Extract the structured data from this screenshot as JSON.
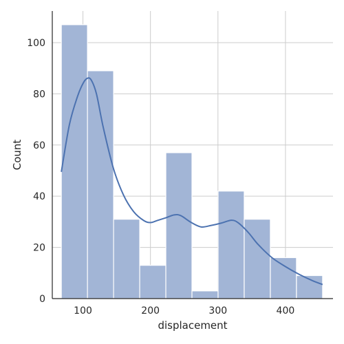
{
  "chart_data": {
    "type": "bar",
    "subtype": "histogram-with-kde",
    "title": "",
    "xlabel": "displacement",
    "ylabel": "Count",
    "xlim": [
      54.6,
      470.4
    ],
    "ylim": [
      0,
      112.35
    ],
    "grid": true,
    "bins": [
      {
        "x0": 68.0,
        "x1": 106.7,
        "count": 107
      },
      {
        "x0": 106.7,
        "x1": 145.4,
        "count": 89
      },
      {
        "x0": 145.4,
        "x1": 184.1,
        "count": 31
      },
      {
        "x0": 184.1,
        "x1": 222.8,
        "count": 13
      },
      {
        "x0": 222.8,
        "x1": 261.5,
        "count": 57
      },
      {
        "x0": 261.5,
        "x1": 300.2,
        "count": 3
      },
      {
        "x0": 300.2,
        "x1": 338.9,
        "count": 42
      },
      {
        "x0": 338.9,
        "x1": 377.6,
        "count": 31
      },
      {
        "x0": 377.6,
        "x1": 416.3,
        "count": 16
      },
      {
        "x0": 416.3,
        "x1": 455.0,
        "count": 9
      }
    ],
    "kde": {
      "x": [
        68,
        80,
        92,
        100,
        106,
        112,
        120,
        130,
        145,
        160,
        175,
        190,
        200,
        210,
        222,
        235,
        245,
        260,
        275,
        290,
        305,
        320,
        330,
        345,
        360,
        380,
        400,
        420,
        440,
        455
      ],
      "y": [
        49.5,
        68,
        79,
        84,
        86,
        85.5,
        80,
        67,
        51,
        40.5,
        34,
        30.5,
        29.7,
        30.5,
        31.5,
        32.7,
        32.4,
        29.8,
        28,
        28.6,
        29.5,
        30.6,
        29.6,
        25.8,
        21,
        16,
        12.5,
        9.5,
        7,
        5.5
      ]
    },
    "xticks": [
      100,
      200,
      300,
      400
    ],
    "yticks": [
      0,
      20,
      40,
      60,
      80,
      100
    ],
    "colors": {
      "bar_fill": "#a2b5d6",
      "bar_stroke": "#ffffff",
      "kde_line": "#4c72b0",
      "grid": "#cccccc",
      "axis": "#262626"
    }
  }
}
